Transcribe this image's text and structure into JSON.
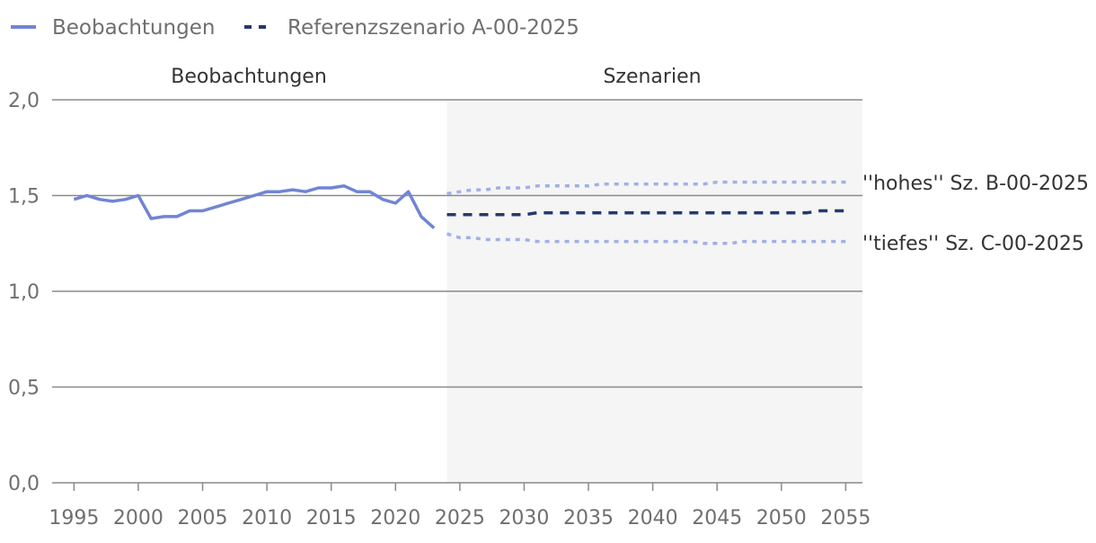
{
  "chart_data": {
    "type": "line",
    "legend": [
      {
        "name": "Beobachtungen",
        "style": "solid",
        "color": "#7185d4"
      },
      {
        "name": "Referenzszenario A-00-2025",
        "style": "dashed",
        "color": "#26386e"
      }
    ],
    "section_labels": {
      "observed": "Beobachtungen",
      "scenarios": "Szenarien"
    },
    "scenario_region": {
      "x_start": 2024,
      "x_end": 2056.3
    },
    "xlim": [
      1993.3,
      2056.3
    ],
    "ylim": [
      0,
      2.0
    ],
    "x_ticks": [
      1995,
      2000,
      2005,
      2010,
      2015,
      2020,
      2025,
      2030,
      2035,
      2040,
      2045,
      2050,
      2055
    ],
    "x_tick_labels": [
      "1995",
      "2000",
      "2005",
      "2010",
      "2015",
      "2020",
      "2025",
      "2030",
      "2035",
      "2040",
      "2045",
      "2050",
      "2055"
    ],
    "y_ticks": [
      0,
      0.5,
      1.0,
      1.5,
      2.0
    ],
    "y_tick_labels": [
      "0,0",
      "0,5",
      "1,0",
      "1,5",
      "2,0"
    ],
    "grid": "horizontal",
    "colors": {
      "observed": "#7185d4",
      "reference": "#26386e",
      "high_low": "#a0b0e6",
      "scenario_bg": "#f5f5f5",
      "grid": "#8a8a8a"
    },
    "series": [
      {
        "id": "observed",
        "name": "Beobachtungen",
        "x": [
          1995,
          1996,
          1997,
          1998,
          1999,
          2000,
          2001,
          2002,
          2003,
          2004,
          2005,
          2006,
          2007,
          2008,
          2009,
          2010,
          2011,
          2012,
          2013,
          2014,
          2015,
          2016,
          2017,
          2018,
          2019,
          2020,
          2021,
          2022,
          2023
        ],
        "values": [
          1.48,
          1.5,
          1.48,
          1.47,
          1.48,
          1.5,
          1.38,
          1.39,
          1.39,
          1.42,
          1.42,
          1.44,
          1.46,
          1.48,
          1.5,
          1.52,
          1.52,
          1.53,
          1.52,
          1.54,
          1.54,
          1.55,
          1.52,
          1.52,
          1.48,
          1.46,
          1.52,
          1.39,
          1.33
        ]
      },
      {
        "id": "reference",
        "name": "Referenzszenario A-00-2025",
        "x": [
          2024,
          2025,
          2026,
          2027,
          2028,
          2029,
          2030,
          2031,
          2032,
          2033,
          2034,
          2035,
          2036,
          2037,
          2038,
          2039,
          2040,
          2041,
          2042,
          2043,
          2044,
          2045,
          2046,
          2047,
          2048,
          2049,
          2050,
          2051,
          2052,
          2053,
          2054,
          2055
        ],
        "values": [
          1.4,
          1.4,
          1.4,
          1.4,
          1.4,
          1.4,
          1.4,
          1.41,
          1.41,
          1.41,
          1.41,
          1.41,
          1.41,
          1.41,
          1.41,
          1.41,
          1.41,
          1.41,
          1.41,
          1.41,
          1.41,
          1.41,
          1.41,
          1.41,
          1.41,
          1.41,
          1.41,
          1.41,
          1.41,
          1.42,
          1.42,
          1.42
        ]
      },
      {
        "id": "high",
        "name": "\"hohes\" Sz. B-00-2025",
        "x": [
          2024,
          2025,
          2026,
          2027,
          2028,
          2029,
          2030,
          2031,
          2032,
          2033,
          2034,
          2035,
          2036,
          2037,
          2038,
          2039,
          2040,
          2041,
          2042,
          2043,
          2044,
          2045,
          2046,
          2047,
          2048,
          2049,
          2050,
          2051,
          2052,
          2053,
          2054,
          2055
        ],
        "values": [
          1.51,
          1.52,
          1.53,
          1.53,
          1.54,
          1.54,
          1.54,
          1.55,
          1.55,
          1.55,
          1.55,
          1.55,
          1.56,
          1.56,
          1.56,
          1.56,
          1.56,
          1.56,
          1.56,
          1.56,
          1.56,
          1.57,
          1.57,
          1.57,
          1.57,
          1.57,
          1.57,
          1.57,
          1.57,
          1.57,
          1.57,
          1.57
        ]
      },
      {
        "id": "low",
        "name": "\"tiefes\" Sz. C-00-2025",
        "x": [
          2024,
          2025,
          2026,
          2027,
          2028,
          2029,
          2030,
          2031,
          2032,
          2033,
          2034,
          2035,
          2036,
          2037,
          2038,
          2039,
          2040,
          2041,
          2042,
          2043,
          2044,
          2045,
          2046,
          2047,
          2048,
          2049,
          2050,
          2051,
          2052,
          2053,
          2054,
          2055
        ],
        "values": [
          1.3,
          1.28,
          1.28,
          1.27,
          1.27,
          1.27,
          1.27,
          1.26,
          1.26,
          1.26,
          1.26,
          1.26,
          1.26,
          1.26,
          1.26,
          1.26,
          1.26,
          1.26,
          1.26,
          1.26,
          1.25,
          1.25,
          1.25,
          1.26,
          1.26,
          1.26,
          1.26,
          1.26,
          1.26,
          1.26,
          1.26,
          1.26
        ]
      }
    ],
    "scenario_labels": {
      "high": "''hohes'' Sz. B-00-2025",
      "low": "''tiefes'' Sz. C-00-2025"
    }
  }
}
